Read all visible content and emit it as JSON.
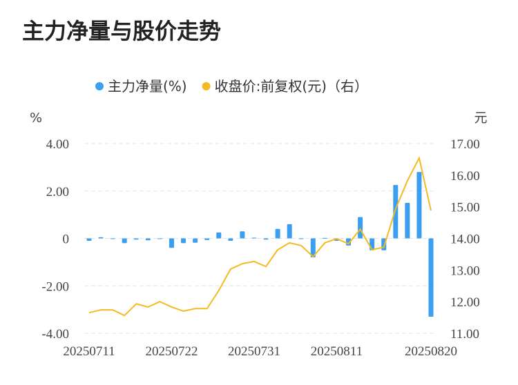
{
  "chart_data": {
    "type": "bar-line",
    "title": "主力净量与股价走势",
    "y_label": "%",
    "y2_label": "元",
    "categories": [
      "20250711",
      null,
      null,
      null,
      null,
      null,
      null,
      "20250722",
      null,
      null,
      null,
      null,
      null,
      null,
      "20250731",
      null,
      null,
      null,
      null,
      null,
      null,
      "20250811",
      null,
      null,
      null,
      null,
      null,
      null,
      null,
      "20250820"
    ],
    "series": [
      {
        "name": "主力净量(%)",
        "type": "bar",
        "color": "#3a9ff0",
        "values": [
          -0.1,
          0.05,
          -0.03,
          -0.2,
          -0.05,
          -0.08,
          -0.03,
          -0.4,
          -0.2,
          -0.18,
          -0.07,
          0.25,
          -0.1,
          0.3,
          0.03,
          -0.05,
          0.4,
          0.6,
          -0.02,
          -0.8,
          0.02,
          -0.1,
          -0.3,
          0.9,
          -0.5,
          -0.5,
          2.25,
          1.5,
          2.8,
          -3.3
        ]
      },
      {
        "name": "收盘价:前复权(元)（右）",
        "type": "line",
        "axis": "y2",
        "color": "#f5b921",
        "values": [
          11.65,
          11.74,
          11.74,
          11.56,
          11.93,
          11.83,
          12.0,
          11.83,
          11.7,
          11.78,
          11.78,
          12.35,
          13.03,
          13.2,
          13.27,
          13.11,
          13.64,
          13.86,
          13.77,
          13.42,
          13.86,
          13.99,
          13.83,
          14.29,
          13.64,
          13.72,
          14.93,
          15.82,
          16.54,
          14.88
        ]
      }
    ],
    "ylim": [
      -4,
      4
    ],
    "yticks": [
      {
        "value": -4,
        "label": "-4.00"
      },
      {
        "value": -2,
        "label": "-2.00"
      },
      0,
      {
        "value": 2,
        "label": "2.00"
      },
      {
        "value": 4,
        "label": "4.00"
      }
    ],
    "y2lim": [
      11,
      17
    ],
    "y2ticks": [
      {
        "value": 11,
        "label": "11.00"
      },
      {
        "value": 12,
        "label": "12.00"
      },
      {
        "value": 13,
        "label": "13.00"
      },
      {
        "value": 14,
        "label": "14.00"
      },
      {
        "value": 15,
        "label": "15.00"
      },
      {
        "value": 16,
        "label": "16.00"
      },
      {
        "value": 17,
        "label": "17.00"
      }
    ],
    "grid": true
  }
}
